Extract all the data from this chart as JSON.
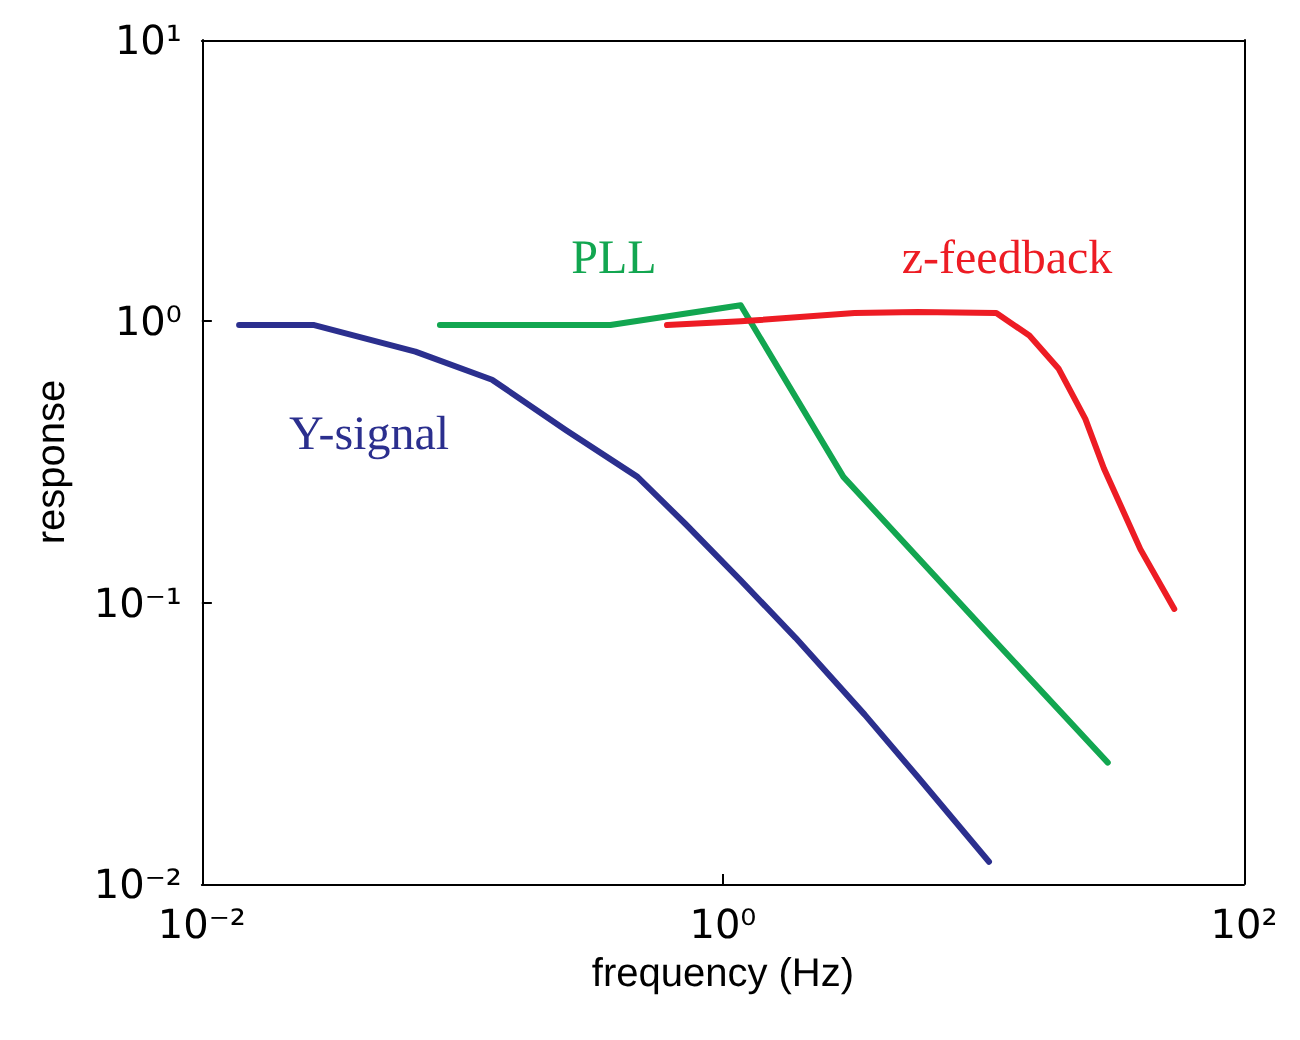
{
  "chart_data": {
    "type": "line",
    "xlabel": "frequency (Hz)",
    "ylabel": "response",
    "log": "xy",
    "grid": false,
    "marker": "none",
    "line_style": "solid",
    "xlim": [
      0.01,
      100
    ],
    "ylim": [
      0.01,
      10
    ],
    "xticks": [
      {
        "value": 0.01,
        "label": "10⁻²"
      },
      {
        "value": 1,
        "label": "10⁰"
      },
      {
        "value": 100,
        "label": "10²"
      }
    ],
    "yticks": [
      {
        "value": 0.01,
        "label": "10⁻²"
      },
      {
        "value": 0.1,
        "label": "10⁻¹"
      },
      {
        "value": 1,
        "label": "10⁰"
      },
      {
        "value": 10,
        "label": "10¹"
      }
    ],
    "series": [
      {
        "name": "Y-signal",
        "color": "#2b2f8e",
        "x": [
          0.0139,
          0.027,
          0.066,
          0.13,
          0.25,
          0.47,
          0.72,
          1.17,
          1.9,
          3.5,
          5.6,
          10.5
        ],
        "values": [
          0.97,
          0.97,
          0.78,
          0.62,
          0.41,
          0.28,
          0.19,
          0.12,
          0.075,
          0.04,
          0.024,
          0.012
        ]
      },
      {
        "name": "PLL",
        "color": "#12a650",
        "x": [
          0.082,
          0.37,
          1.17,
          2.9,
          10.5,
          30
        ],
        "values": [
          0.97,
          0.97,
          1.14,
          0.28,
          0.077,
          0.027
        ]
      },
      {
        "name": "z-feedback",
        "color": "#ed1c24",
        "x": [
          0.61,
          1.17,
          3.2,
          5.6,
          11.2,
          15,
          19.4,
          24.6,
          29,
          40,
          54
        ],
        "values": [
          0.97,
          1.0,
          1.07,
          1.08,
          1.07,
          0.89,
          0.68,
          0.45,
          0.3,
          0.155,
          0.095
        ]
      }
    ]
  }
}
